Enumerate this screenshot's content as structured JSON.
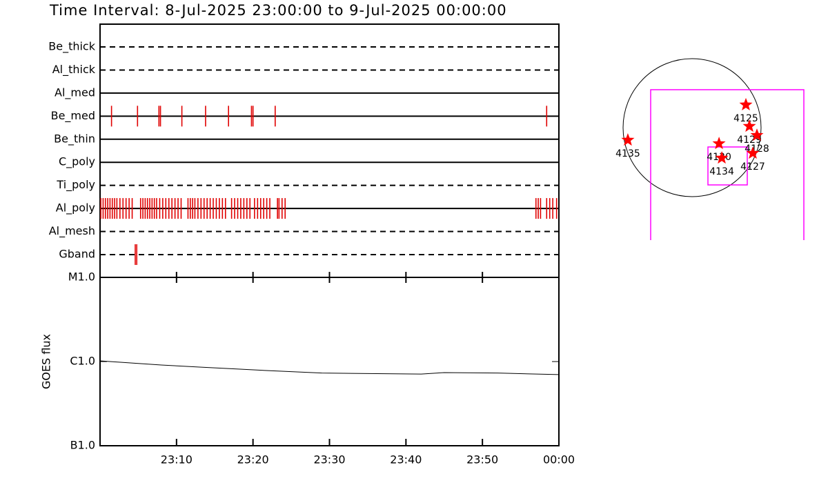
{
  "chart_data": [
    {
      "type": "event",
      "title": "Time Interval:  8-Jul-2025 23:00:00 to  9-Jul-2025 00:00:00",
      "categories": [
        "Be_thick",
        "Al_thick",
        "Al_med",
        "Be_med",
        "Be_thin",
        "C_poly",
        "Ti_poly",
        "Al_poly",
        "Al_mesh",
        "Gband"
      ],
      "line_styles": [
        "dashed",
        "dashed",
        "solid",
        "solid",
        "solid",
        "solid",
        "dashed",
        "solid",
        "dashed",
        "dashed"
      ],
      "events": [
        [],
        [],
        [],
        [
          1.5,
          4.9,
          7.7,
          7.9,
          10.7,
          13.8,
          16.8,
          19.8,
          20.0,
          22.9,
          58.4
        ],
        [],
        [],
        [],
        [
          0.1,
          0.4,
          0.7,
          1.0,
          1.3,
          1.6,
          1.9,
          2.2,
          2.6,
          3.0,
          3.4,
          3.8,
          4.2,
          5.3,
          5.6,
          5.9,
          6.2,
          6.5,
          6.8,
          7.1,
          7.4,
          7.8,
          8.2,
          8.6,
          9.0,
          9.4,
          9.8,
          10.2,
          10.6,
          11.5,
          11.8,
          12.1,
          12.4,
          12.8,
          13.2,
          13.6,
          14.0,
          14.4,
          14.8,
          15.2,
          15.6,
          16.0,
          16.4,
          17.2,
          17.6,
          18.0,
          18.4,
          18.8,
          19.2,
          19.6,
          20.2,
          20.6,
          21.0,
          21.4,
          21.8,
          22.2,
          23.2,
          23.4,
          23.8,
          24.2,
          57.0,
          57.3,
          57.6,
          58.4,
          58.8,
          59.2,
          59.7
        ],
        [],
        [
          4.6,
          4.8
        ]
      ],
      "color": "#e00000",
      "xlim": [
        0,
        60
      ]
    },
    {
      "type": "line",
      "y_label": "GOES flux",
      "x": [
        0,
        8,
        13,
        22,
        29,
        42,
        45,
        52,
        60
      ],
      "values": [
        1.02e-06,
        9.1e-07,
        8.6e-07,
        7.8e-07,
        7.3e-07,
        7.1e-07,
        7.4e-07,
        7.3e-07,
        7e-07
      ],
      "color": "#000000",
      "log_scale": true,
      "xlim": [
        0,
        60
      ],
      "xticks": [
        {
          "value": 10,
          "label": "23:10"
        },
        {
          "value": 20,
          "label": "23:20"
        },
        {
          "value": 30,
          "label": "23:30"
        },
        {
          "value": 40,
          "label": "23:40"
        },
        {
          "value": 50,
          "label": "23:50"
        },
        {
          "value": 60,
          "label": "00:00"
        }
      ],
      "ylim": [
        1e-07,
        1e-05
      ],
      "yticks": [
        {
          "value": 1e-07,
          "label": "B1.0"
        },
        {
          "value": 1e-06,
          "label": "C1.0"
        },
        {
          "value": 1e-05,
          "label": "M1.0"
        }
      ]
    },
    {
      "type": "scatter",
      "labels": [
        "4125",
        "4129",
        "4128",
        "4130",
        "4134",
        "4127",
        "4135"
      ],
      "x": [
        741,
        789,
        893,
        371,
        409,
        836,
        -884
      ],
      "values": [
        314,
        19,
        -105,
        -219,
        -418,
        -352,
        -171
      ],
      "color": "#ff0000"
    }
  ]
}
